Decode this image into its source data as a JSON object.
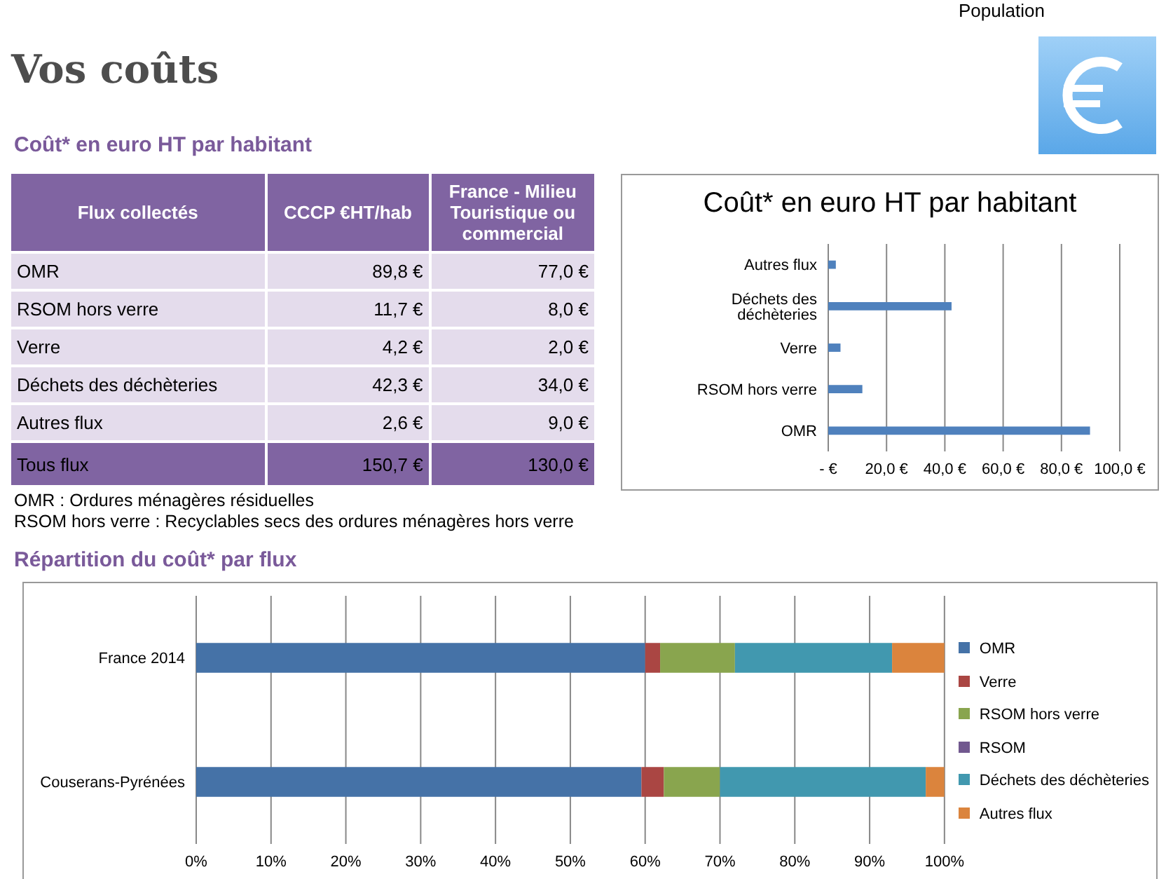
{
  "chart_data": [
    {
      "type": "other",
      "title": "Vos coûts",
      "subtitle": "Coût* en euro HT par habitant",
      "xlabel": "Flux collectés",
      "categories": [
        "OMR",
        "RSOM hors verre",
        "Verre",
        "Déchets des déchèteries",
        "Autres flux",
        "Tous flux"
      ],
      "series": [
        {
          "name": "CCCP €HT/hab",
          "colors": [
            "#e4dcec",
            "#e4dcec",
            "#e4dcec",
            "#e4dcec",
            "#e4dcec",
            "#8064a2"
          ],
          "values": [
            89.8,
            11.7,
            4.2,
            42.3,
            2.6,
            150.7
          ],
          "value_labels": [
            "89,8 €",
            "11,7 €",
            "4,2 €",
            "42,3 €",
            "2,6 €",
            "150,7 €"
          ]
        },
        {
          "name": "France - Milieu Touristique ou commercial",
          "colors": [
            "#e4dcec",
            "#e4dcec",
            "#e4dcec",
            "#e4dcec",
            "#e4dcec",
            "#8064a2"
          ],
          "values": [
            77.0,
            8.0,
            2.0,
            34.0,
            9.0,
            130.0
          ],
          "value_labels": [
            "77,0 €",
            "8,0 €",
            "2,0 €",
            "34,0 €",
            "9,0 €",
            "130,0 €"
          ]
        }
      ],
      "annotations": [
        "Population",
        "OMR : Ordures ménagères résiduelles",
        "RSOM hors verre : Recyclables secs des ordures ménagères hors verre"
      ]
    },
    {
      "type": "bar",
      "orientation": "horizontal",
      "title": "Coût* en euro HT par habitant",
      "categories": [
        "Autres flux",
        "Déchets des déchèteries",
        "Verre",
        "RSOM hors verre",
        "OMR"
      ],
      "values": [
        2.6,
        42.3,
        4.2,
        11.7,
        89.8
      ],
      "color": "#4f81bd",
      "xlim": [
        0,
        100
      ],
      "xticks": [
        {
          "value": 0,
          "label": "-   €"
        },
        {
          "value": 20,
          "label": "20,0 €"
        },
        {
          "value": 40,
          "label": "40,0 €"
        },
        {
          "value": 60,
          "label": "60,0 €"
        },
        {
          "value": 80,
          "label": "80,0 €"
        },
        {
          "value": 100,
          "label": "100,0 €"
        }
      ],
      "grid": "x"
    },
    {
      "type": "bar",
      "orientation": "horizontal",
      "stacked": true,
      "title": "Répartition du coût* par flux",
      "categories": [
        "France 2014",
        "Couserans-Pyrénées"
      ],
      "series": [
        {
          "name": "OMR",
          "color": "#4572a7",
          "values": [
            60,
            59.5
          ]
        },
        {
          "name": "Verre",
          "color": "#aa4643",
          "values": [
            2,
            3
          ]
        },
        {
          "name": "RSOM hors verre",
          "color": "#89a54e",
          "values": [
            10,
            7.5
          ]
        },
        {
          "name": "RSOM",
          "color": "#71588f",
          "values": [
            0,
            0
          ]
        },
        {
          "name": "Déchets des déchèteries",
          "color": "#4198af",
          "values": [
            21,
            27.5
          ]
        },
        {
          "name": "Autres flux",
          "color": "#db843d",
          "values": [
            7,
            2.5
          ]
        }
      ],
      "xlim": [
        0,
        100
      ],
      "xticks": [
        {
          "value": 0,
          "label": "0%"
        },
        {
          "value": 10,
          "label": "10%"
        },
        {
          "value": 20,
          "label": "20%"
        },
        {
          "value": 30,
          "label": "30%"
        },
        {
          "value": 40,
          "label": "40%"
        },
        {
          "value": 50,
          "label": "50%"
        },
        {
          "value": 60,
          "label": "60%"
        },
        {
          "value": 70,
          "label": "70%"
        },
        {
          "value": 80,
          "label": "80%"
        },
        {
          "value": 90,
          "label": "90%"
        },
        {
          "value": 100,
          "label": "100%"
        }
      ],
      "grid": "x",
      "legend": "right"
    }
  ]
}
